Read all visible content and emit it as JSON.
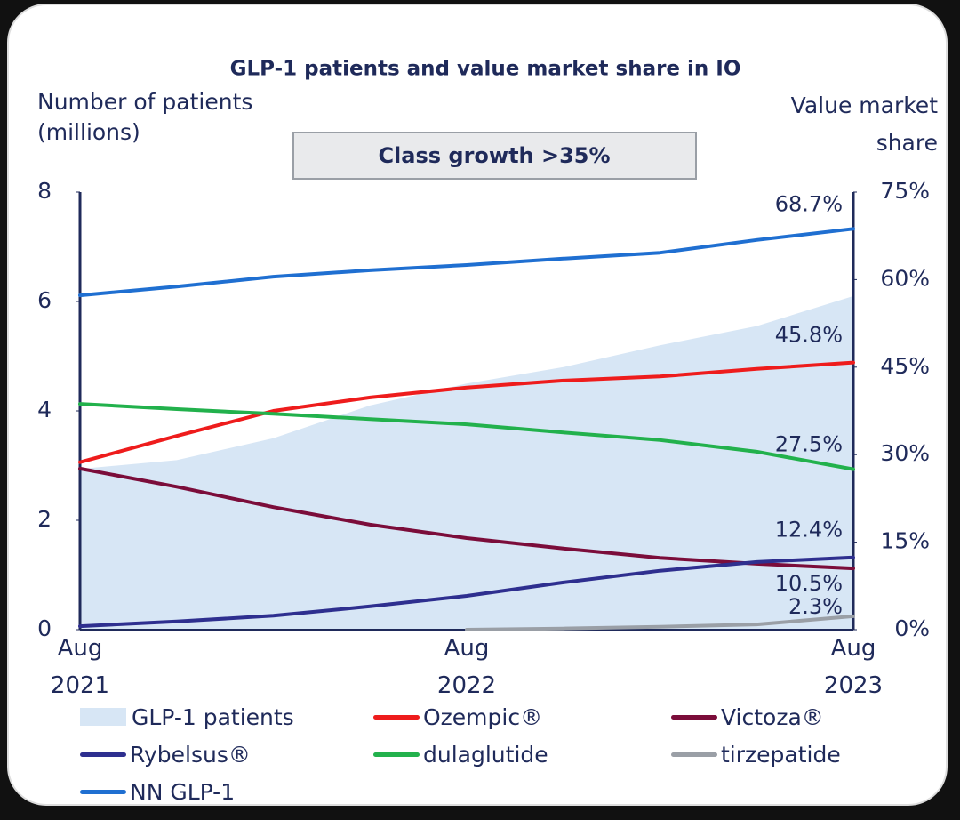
{
  "chart_data": {
    "type": "line",
    "title": "GLP-1 patients and value market share in IO",
    "annotation": "Class growth >35%",
    "ylabel": "Number of patients (millions)",
    "y2label": "Value market share",
    "categories": [
      "Aug 2021",
      null,
      null,
      null,
      "Aug 2022",
      null,
      null,
      null,
      "Aug 2023"
    ],
    "ylim": [
      0,
      8
    ],
    "yticks": [
      0,
      2,
      4,
      6,
      8
    ],
    "y2lim": [
      0,
      75
    ],
    "y2ticks": [
      {
        "value": 0,
        "label": "0%"
      },
      {
        "value": 15,
        "label": "15%"
      },
      {
        "value": 30,
        "label": "30%"
      },
      {
        "value": 45,
        "label": "45%"
      },
      {
        "value": 60,
        "label": "60%"
      },
      {
        "value": 75,
        "label": "75%"
      }
    ],
    "series": [
      {
        "name": "GLP-1 patients",
        "type": "area",
        "axis": "y",
        "color": "#d7e6f5",
        "values": [
          2.94,
          3.1,
          3.5,
          4.1,
          4.5,
          4.8,
          5.2,
          5.55,
          6.1
        ]
      },
      {
        "name": "Ozempic®",
        "axis": "y2",
        "color": "#ee1c1c",
        "values": [
          28.7,
          33.2,
          37.5,
          39.8,
          41.5,
          42.7,
          43.4,
          44.7,
          45.8
        ],
        "value_labels": [
          null,
          null,
          null,
          null,
          null,
          null,
          null,
          null,
          "45.8%"
        ]
      },
      {
        "name": "Victoza®",
        "axis": "y2",
        "color": "#7b0d3a",
        "values": [
          27.6,
          24.5,
          21.0,
          18.0,
          15.7,
          13.9,
          12.3,
          11.3,
          10.5
        ],
        "value_labels": [
          null,
          null,
          null,
          null,
          null,
          null,
          null,
          null,
          "10.5%"
        ]
      },
      {
        "name": "Rybelsus®",
        "axis": "y2",
        "color": "#2e2f8f",
        "values": [
          0.6,
          1.4,
          2.4,
          4.0,
          5.8,
          8.1,
          10.1,
          11.6,
          12.4
        ],
        "value_labels": [
          null,
          null,
          null,
          null,
          null,
          null,
          null,
          null,
          "12.4%"
        ]
      },
      {
        "name": "dulaglutide",
        "axis": "y2",
        "color": "#22b14c",
        "values": [
          38.7,
          37.8,
          37.0,
          36.1,
          35.2,
          33.8,
          32.5,
          30.5,
          27.5
        ],
        "value_labels": [
          null,
          null,
          null,
          null,
          null,
          null,
          null,
          null,
          "27.5%"
        ]
      },
      {
        "name": "tirzepatide",
        "axis": "y2",
        "color": "#9a9fa6",
        "values": [
          null,
          null,
          null,
          null,
          0,
          0.2,
          0.5,
          0.9,
          2.3
        ],
        "value_labels": [
          null,
          null,
          null,
          null,
          null,
          null,
          null,
          null,
          "2.3%"
        ]
      },
      {
        "name": "NN GLP-1",
        "axis": "y2",
        "color": "#1f6fd1",
        "values": [
          57.3,
          58.8,
          60.5,
          61.6,
          62.5,
          63.6,
          64.6,
          66.8,
          68.7
        ],
        "value_labels": [
          null,
          null,
          null,
          null,
          null,
          null,
          null,
          null,
          "68.7%"
        ]
      }
    ]
  }
}
